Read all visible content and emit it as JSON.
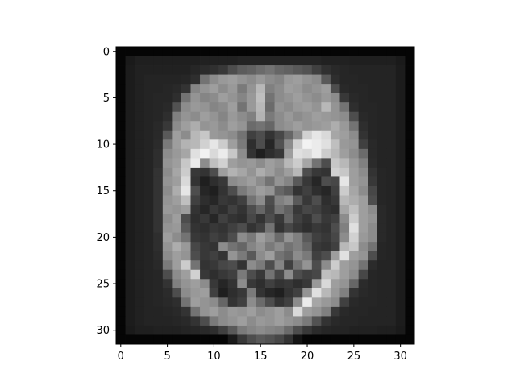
{
  "chart_data": {
    "type": "heatmap",
    "colormap": "gray",
    "title": "",
    "xlabel": "",
    "ylabel": "",
    "xlim": [
      -0.5,
      31.5
    ],
    "ylim": [
      31.5,
      -0.5
    ],
    "x_ticks": [
      0,
      5,
      10,
      15,
      20,
      25,
      30
    ],
    "y_ticks": [
      0,
      5,
      10,
      15,
      20,
      25,
      30
    ],
    "x_tick_labels": [
      "0",
      "5",
      "10",
      "15",
      "20",
      "25",
      "30"
    ],
    "y_tick_labels": [
      "0",
      "5",
      "10",
      "15",
      "20",
      "25",
      "30"
    ],
    "value_range": [
      0,
      1
    ],
    "values": [
      [
        0.02,
        0.02,
        0.02,
        0.02,
        0.02,
        0.02,
        0.02,
        0.02,
        0.02,
        0.02,
        0.02,
        0.02,
        0.02,
        0.02,
        0.02,
        0.02,
        0.02,
        0.02,
        0.02,
        0.02,
        0.02,
        0.02,
        0.02,
        0.02,
        0.02,
        0.02,
        0.02,
        0.02,
        0.02,
        0.02,
        0.02,
        0.02
      ],
      [
        0.02,
        0.1,
        0.12,
        0.12,
        0.12,
        0.12,
        0.12,
        0.12,
        0.12,
        0.13,
        0.13,
        0.13,
        0.13,
        0.14,
        0.14,
        0.14,
        0.14,
        0.14,
        0.14,
        0.14,
        0.14,
        0.14,
        0.13,
        0.13,
        0.13,
        0.12,
        0.12,
        0.12,
        0.12,
        0.12,
        0.1,
        0.02
      ],
      [
        0.02,
        0.11,
        0.13,
        0.13,
        0.13,
        0.13,
        0.13,
        0.13,
        0.15,
        0.17,
        0.19,
        0.22,
        0.3,
        0.36,
        0.38,
        0.42,
        0.45,
        0.4,
        0.38,
        0.35,
        0.32,
        0.25,
        0.19,
        0.16,
        0.15,
        0.14,
        0.14,
        0.14,
        0.14,
        0.14,
        0.11,
        0.02
      ],
      [
        0.02,
        0.11,
        0.13,
        0.14,
        0.14,
        0.14,
        0.14,
        0.15,
        0.18,
        0.45,
        0.55,
        0.6,
        0.62,
        0.58,
        0.55,
        0.6,
        0.55,
        0.52,
        0.6,
        0.62,
        0.58,
        0.55,
        0.35,
        0.18,
        0.15,
        0.15,
        0.14,
        0.14,
        0.14,
        0.14,
        0.11,
        0.02
      ],
      [
        0.02,
        0.11,
        0.13,
        0.14,
        0.14,
        0.15,
        0.16,
        0.2,
        0.52,
        0.58,
        0.62,
        0.55,
        0.6,
        0.48,
        0.58,
        0.72,
        0.5,
        0.55,
        0.62,
        0.6,
        0.55,
        0.58,
        0.62,
        0.3,
        0.16,
        0.15,
        0.15,
        0.14,
        0.14,
        0.14,
        0.11,
        0.02
      ],
      [
        0.02,
        0.11,
        0.13,
        0.14,
        0.15,
        0.15,
        0.18,
        0.45,
        0.58,
        0.52,
        0.55,
        0.62,
        0.58,
        0.52,
        0.6,
        0.75,
        0.45,
        0.55,
        0.58,
        0.62,
        0.58,
        0.55,
        0.6,
        0.55,
        0.22,
        0.16,
        0.15,
        0.14,
        0.14,
        0.14,
        0.11,
        0.02
      ],
      [
        0.02,
        0.11,
        0.13,
        0.14,
        0.15,
        0.16,
        0.32,
        0.55,
        0.6,
        0.58,
        0.52,
        0.55,
        0.62,
        0.45,
        0.6,
        0.72,
        0.42,
        0.58,
        0.55,
        0.6,
        0.62,
        0.58,
        0.72,
        0.58,
        0.45,
        0.18,
        0.15,
        0.15,
        0.14,
        0.14,
        0.11,
        0.02
      ],
      [
        0.02,
        0.11,
        0.13,
        0.14,
        0.15,
        0.18,
        0.5,
        0.58,
        0.55,
        0.62,
        0.58,
        0.52,
        0.6,
        0.55,
        0.5,
        0.7,
        0.48,
        0.55,
        0.6,
        0.55,
        0.58,
        0.62,
        0.6,
        0.58,
        0.55,
        0.3,
        0.16,
        0.15,
        0.14,
        0.14,
        0.11,
        0.02
      ],
      [
        0.02,
        0.11,
        0.13,
        0.14,
        0.16,
        0.22,
        0.55,
        0.62,
        0.68,
        0.58,
        0.6,
        0.55,
        0.62,
        0.58,
        0.42,
        0.45,
        0.4,
        0.55,
        0.58,
        0.62,
        0.58,
        0.6,
        0.62,
        0.68,
        0.6,
        0.45,
        0.18,
        0.15,
        0.14,
        0.14,
        0.11,
        0.02
      ],
      [
        0.02,
        0.11,
        0.13,
        0.14,
        0.16,
        0.35,
        0.62,
        0.55,
        0.72,
        0.78,
        0.6,
        0.58,
        0.55,
        0.45,
        0.25,
        0.3,
        0.2,
        0.28,
        0.4,
        0.55,
        0.82,
        0.9,
        0.85,
        0.65,
        0.62,
        0.55,
        0.2,
        0.15,
        0.14,
        0.14,
        0.11,
        0.02
      ],
      [
        0.02,
        0.11,
        0.13,
        0.14,
        0.17,
        0.48,
        0.62,
        0.7,
        0.72,
        0.82,
        0.9,
        0.8,
        0.62,
        0.48,
        0.18,
        0.3,
        0.15,
        0.32,
        0.55,
        0.82,
        0.95,
        0.92,
        0.88,
        0.75,
        0.6,
        0.58,
        0.25,
        0.16,
        0.14,
        0.14,
        0.11,
        0.02
      ],
      [
        0.02,
        0.11,
        0.13,
        0.14,
        0.18,
        0.55,
        0.6,
        0.65,
        0.88,
        0.95,
        0.85,
        0.92,
        0.78,
        0.55,
        0.2,
        0.12,
        0.18,
        0.22,
        0.62,
        0.88,
        0.85,
        0.92,
        0.8,
        0.72,
        0.62,
        0.55,
        0.42,
        0.16,
        0.14,
        0.14,
        0.11,
        0.02
      ],
      [
        0.02,
        0.11,
        0.13,
        0.14,
        0.18,
        0.58,
        0.62,
        0.78,
        0.92,
        0.55,
        0.75,
        0.82,
        0.62,
        0.58,
        0.6,
        0.55,
        0.62,
        0.58,
        0.72,
        0.8,
        0.65,
        0.45,
        0.3,
        0.78,
        0.72,
        0.6,
        0.5,
        0.17,
        0.14,
        0.14,
        0.11,
        0.02
      ],
      [
        0.02,
        0.11,
        0.13,
        0.14,
        0.2,
        0.55,
        0.65,
        0.8,
        0.22,
        0.2,
        0.3,
        0.62,
        0.7,
        0.65,
        0.58,
        0.68,
        0.62,
        0.55,
        0.62,
        0.72,
        0.3,
        0.22,
        0.2,
        0.82,
        0.78,
        0.62,
        0.55,
        0.2,
        0.15,
        0.14,
        0.11,
        0.02
      ],
      [
        0.02,
        0.11,
        0.13,
        0.14,
        0.2,
        0.58,
        0.62,
        0.85,
        0.2,
        0.12,
        0.18,
        0.22,
        0.55,
        0.58,
        0.62,
        0.55,
        0.45,
        0.58,
        0.52,
        0.35,
        0.22,
        0.15,
        0.3,
        0.28,
        0.9,
        0.62,
        0.58,
        0.22,
        0.15,
        0.14,
        0.11,
        0.02
      ],
      [
        0.02,
        0.11,
        0.13,
        0.14,
        0.2,
        0.55,
        0.68,
        0.9,
        0.3,
        0.15,
        0.12,
        0.2,
        0.3,
        0.48,
        0.55,
        0.62,
        0.58,
        0.4,
        0.35,
        0.2,
        0.25,
        0.18,
        0.15,
        0.25,
        0.8,
        0.65,
        0.55,
        0.28,
        0.15,
        0.14,
        0.11,
        0.02
      ],
      [
        0.02,
        0.11,
        0.13,
        0.14,
        0.2,
        0.58,
        0.62,
        0.75,
        0.25,
        0.18,
        0.15,
        0.22,
        0.2,
        0.25,
        0.45,
        0.55,
        0.3,
        0.5,
        0.55,
        0.35,
        0.22,
        0.3,
        0.18,
        0.22,
        0.72,
        0.68,
        0.62,
        0.3,
        0.15,
        0.14,
        0.11,
        0.02
      ],
      [
        0.02,
        0.11,
        0.13,
        0.14,
        0.2,
        0.6,
        0.58,
        0.62,
        0.2,
        0.15,
        0.22,
        0.18,
        0.25,
        0.2,
        0.3,
        0.4,
        0.28,
        0.45,
        0.38,
        0.22,
        0.28,
        0.25,
        0.2,
        0.18,
        0.65,
        0.75,
        0.62,
        0.55,
        0.16,
        0.14,
        0.11,
        0.02
      ],
      [
        0.02,
        0.11,
        0.13,
        0.14,
        0.2,
        0.55,
        0.62,
        0.3,
        0.18,
        0.22,
        0.15,
        0.25,
        0.2,
        0.18,
        0.28,
        0.2,
        0.3,
        0.22,
        0.4,
        0.25,
        0.2,
        0.3,
        0.22,
        0.25,
        0.55,
        0.8,
        0.62,
        0.58,
        0.16,
        0.14,
        0.11,
        0.02
      ],
      [
        0.02,
        0.11,
        0.13,
        0.14,
        0.2,
        0.58,
        0.6,
        0.35,
        0.2,
        0.18,
        0.22,
        0.2,
        0.25,
        0.3,
        0.2,
        0.25,
        0.45,
        0.2,
        0.28,
        0.22,
        0.18,
        0.22,
        0.2,
        0.3,
        0.5,
        0.88,
        0.62,
        0.55,
        0.16,
        0.14,
        0.11,
        0.02
      ],
      [
        0.02,
        0.11,
        0.13,
        0.14,
        0.18,
        0.62,
        0.55,
        0.45,
        0.22,
        0.2,
        0.25,
        0.22,
        0.3,
        0.55,
        0.48,
        0.62,
        0.55,
        0.42,
        0.58,
        0.5,
        0.35,
        0.25,
        0.22,
        0.28,
        0.55,
        0.82,
        0.6,
        0.55,
        0.16,
        0.14,
        0.11,
        0.02
      ],
      [
        0.02,
        0.11,
        0.13,
        0.14,
        0.18,
        0.58,
        0.68,
        0.6,
        0.28,
        0.22,
        0.2,
        0.55,
        0.45,
        0.4,
        0.52,
        0.58,
        0.48,
        0.55,
        0.45,
        0.5,
        0.4,
        0.22,
        0.2,
        0.25,
        0.72,
        0.78,
        0.55,
        0.45,
        0.15,
        0.14,
        0.11,
        0.02
      ],
      [
        0.02,
        0.11,
        0.13,
        0.14,
        0.17,
        0.55,
        0.62,
        0.58,
        0.3,
        0.22,
        0.25,
        0.2,
        0.58,
        0.48,
        0.35,
        0.55,
        0.62,
        0.45,
        0.4,
        0.55,
        0.48,
        0.25,
        0.3,
        0.62,
        0.88,
        0.62,
        0.58,
        0.3,
        0.15,
        0.14,
        0.11,
        0.02
      ],
      [
        0.02,
        0.11,
        0.13,
        0.14,
        0.16,
        0.48,
        0.62,
        0.8,
        0.45,
        0.2,
        0.22,
        0.28,
        0.3,
        0.2,
        0.55,
        0.48,
        0.3,
        0.52,
        0.25,
        0.45,
        0.58,
        0.3,
        0.55,
        0.8,
        0.62,
        0.58,
        0.45,
        0.17,
        0.14,
        0.14,
        0.11,
        0.02
      ],
      [
        0.02,
        0.11,
        0.13,
        0.14,
        0.15,
        0.3,
        0.55,
        0.62,
        0.82,
        0.22,
        0.18,
        0.22,
        0.25,
        0.48,
        0.3,
        0.22,
        0.45,
        0.28,
        0.55,
        0.3,
        0.25,
        0.28,
        0.75,
        0.72,
        0.62,
        0.55,
        0.28,
        0.15,
        0.14,
        0.14,
        0.11,
        0.02
      ],
      [
        0.02,
        0.11,
        0.13,
        0.14,
        0.15,
        0.2,
        0.5,
        0.58,
        0.62,
        0.55,
        0.22,
        0.15,
        0.2,
        0.55,
        0.22,
        0.18,
        0.25,
        0.2,
        0.22,
        0.18,
        0.22,
        0.6,
        0.85,
        0.62,
        0.58,
        0.4,
        0.17,
        0.15,
        0.14,
        0.14,
        0.11,
        0.02
      ],
      [
        0.02,
        0.11,
        0.13,
        0.14,
        0.15,
        0.17,
        0.3,
        0.55,
        0.6,
        0.62,
        0.25,
        0.12,
        0.18,
        0.22,
        0.48,
        0.2,
        0.15,
        0.12,
        0.2,
        0.25,
        0.58,
        0.88,
        0.72,
        0.6,
        0.5,
        0.2,
        0.16,
        0.15,
        0.14,
        0.14,
        0.11,
        0.02
      ],
      [
        0.02,
        0.11,
        0.13,
        0.14,
        0.15,
        0.16,
        0.18,
        0.45,
        0.62,
        0.58,
        0.55,
        0.4,
        0.2,
        0.25,
        0.55,
        0.42,
        0.3,
        0.2,
        0.25,
        0.55,
        0.92,
        0.65,
        0.6,
        0.55,
        0.25,
        0.16,
        0.15,
        0.15,
        0.14,
        0.14,
        0.11,
        0.02
      ],
      [
        0.02,
        0.11,
        0.13,
        0.14,
        0.14,
        0.15,
        0.16,
        0.2,
        0.45,
        0.58,
        0.62,
        0.55,
        0.6,
        0.58,
        0.62,
        0.55,
        0.58,
        0.62,
        0.55,
        0.85,
        0.62,
        0.58,
        0.5,
        0.22,
        0.16,
        0.15,
        0.15,
        0.14,
        0.14,
        0.14,
        0.11,
        0.02
      ],
      [
        0.02,
        0.11,
        0.13,
        0.14,
        0.14,
        0.14,
        0.15,
        0.16,
        0.2,
        0.3,
        0.48,
        0.55,
        0.58,
        0.62,
        0.55,
        0.6,
        0.58,
        0.62,
        0.58,
        0.55,
        0.48,
        0.32,
        0.2,
        0.16,
        0.15,
        0.15,
        0.14,
        0.14,
        0.14,
        0.14,
        0.11,
        0.02
      ],
      [
        0.02,
        0.1,
        0.12,
        0.12,
        0.13,
        0.13,
        0.13,
        0.14,
        0.15,
        0.16,
        0.18,
        0.25,
        0.35,
        0.48,
        0.52,
        0.55,
        0.52,
        0.5,
        0.42,
        0.3,
        0.22,
        0.17,
        0.15,
        0.14,
        0.14,
        0.13,
        0.13,
        0.13,
        0.12,
        0.12,
        0.1,
        0.02
      ],
      [
        0.02,
        0.02,
        0.02,
        0.02,
        0.02,
        0.02,
        0.02,
        0.02,
        0.02,
        0.02,
        0.02,
        0.02,
        0.1,
        0.22,
        0.3,
        0.35,
        0.32,
        0.28,
        0.2,
        0.08,
        0.02,
        0.02,
        0.02,
        0.02,
        0.02,
        0.02,
        0.02,
        0.02,
        0.02,
        0.02,
        0.02,
        0.02
      ]
    ]
  }
}
